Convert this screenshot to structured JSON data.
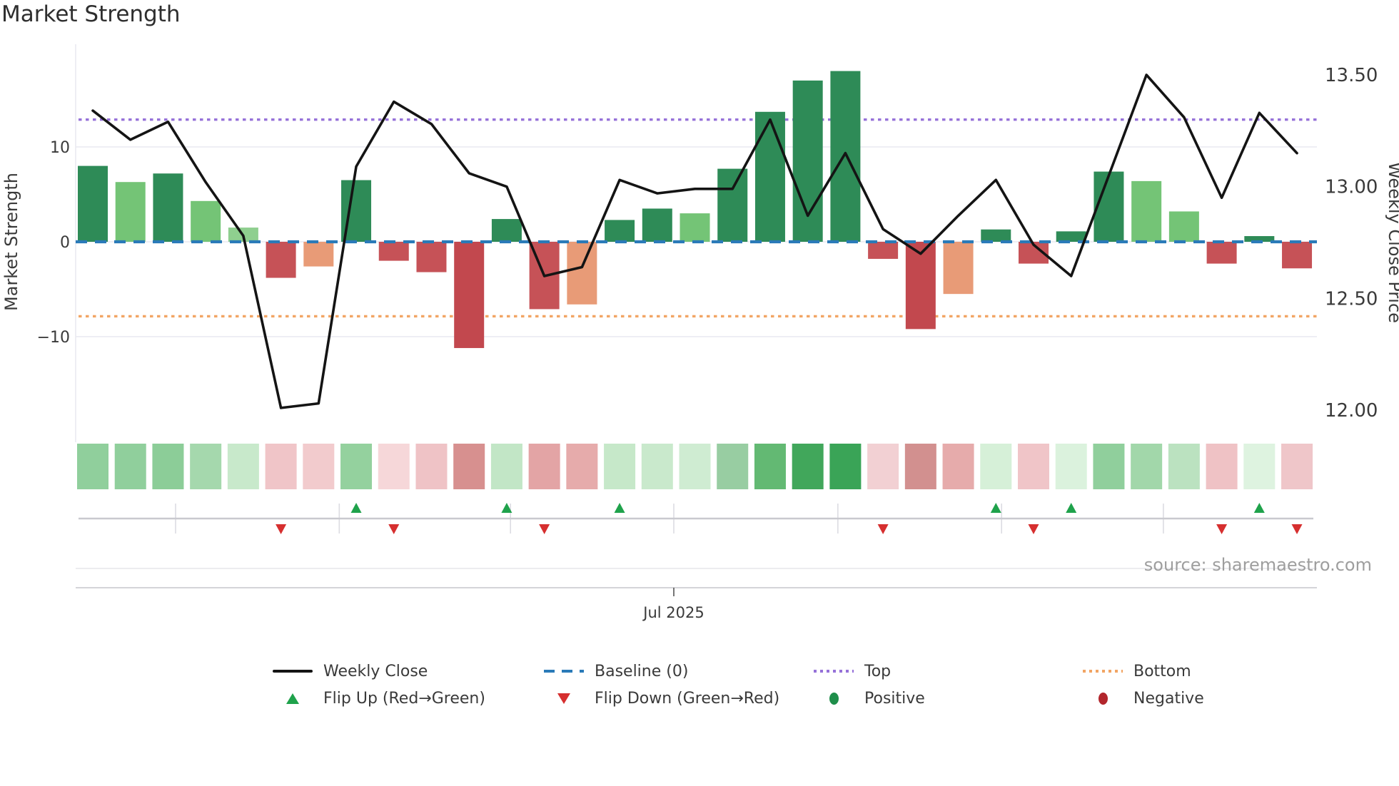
{
  "title": "Market Strength",
  "source_text": "source: sharemaestro.com",
  "axes": {
    "left": {
      "label": "Market Strength",
      "tick_labels": [
        "10",
        "0",
        "−10"
      ],
      "tick_values": [
        10,
        0,
        -10
      ]
    },
    "right": {
      "label": "Weekly Close Price",
      "tick_labels": [
        "13.50",
        "13.00",
        "12.50",
        "12.00"
      ],
      "tick_values": [
        13.5,
        13.0,
        12.5,
        12.0
      ]
    },
    "x": {
      "tick_label": "Jul 2025",
      "tick_week_position": 15.44,
      "month_gridline_week_positions": [
        2.2,
        6.55,
        11.1,
        15.44,
        19.8,
        24.15,
        28.45
      ]
    }
  },
  "chart_data": {
    "type": "bar+line+heatmap",
    "x_unit": "weeks",
    "x_count": 33,
    "series": [
      {
        "name": "Market Strength",
        "type": "bar",
        "axis": "left",
        "values": [
          8.0,
          6.3,
          7.2,
          4.3,
          1.5,
          -3.8,
          -2.6,
          6.5,
          -2.0,
          -3.2,
          -11.2,
          2.4,
          -7.1,
          -6.6,
          2.3,
          3.5,
          3.0,
          7.7,
          13.7,
          17.0,
          18.0,
          -1.8,
          -9.2,
          -5.5,
          1.3,
          -2.3,
          1.1,
          7.4,
          6.4,
          3.2,
          -2.3,
          0.6,
          -2.8
        ],
        "bar_colors": [
          "#2e8b57",
          "#74c476",
          "#2e8b57",
          "#74c476",
          "#8fcf8f",
          "#c65257",
          "#e89b77",
          "#2e8b57",
          "#c65257",
          "#c65257",
          "#c2484e",
          "#2e8b57",
          "#c65257",
          "#e89b77",
          "#2e8b57",
          "#2e8b57",
          "#74c476",
          "#2e8b57",
          "#2e8b57",
          "#2e8b57",
          "#2e8b57",
          "#c65257",
          "#c2484e",
          "#e89b77",
          "#2e8b57",
          "#c65257",
          "#2e8b57",
          "#2e8b57",
          "#74c476",
          "#74c476",
          "#c65257",
          "#2e8b57",
          "#c65257"
        ]
      },
      {
        "name": "Weekly Close",
        "type": "line",
        "axis": "right",
        "values": [
          13.34,
          13.21,
          13.29,
          13.02,
          12.78,
          12.01,
          12.03,
          13.09,
          13.38,
          13.28,
          13.06,
          13.0,
          12.6,
          12.64,
          13.03,
          12.97,
          12.99,
          12.99,
          13.3,
          12.87,
          13.15,
          12.81,
          12.7,
          12.87,
          13.03,
          12.74,
          12.6,
          13.05,
          13.5,
          13.31,
          12.95,
          13.33,
          13.15
        ]
      }
    ],
    "reference_lines": [
      {
        "name": "Baseline (0)",
        "axis": "left",
        "value": 0,
        "style": "dashed",
        "color": "#2a7ab8"
      },
      {
        "name": "Top",
        "axis": "right",
        "value": 13.3,
        "style": "dotted",
        "color": "#9672d9"
      },
      {
        "name": "Bottom",
        "axis": "right",
        "value": 12.42,
        "style": "dotted",
        "color": "#f2a564"
      }
    ],
    "heatmap_strip_colors": [
      "#90cf9c",
      "#90cf9c",
      "#8ccd98",
      "#a5d8ad",
      "#c8e9cb",
      "#f0c5c8",
      "#f2cbcd",
      "#94d19e",
      "#f6d7d9",
      "#efc3c6",
      "#d7908f",
      "#c2e6c6",
      "#e3a4a5",
      "#e6abab",
      "#c6e8c9",
      "#c9e9cc",
      "#cfecd2",
      "#98cda2",
      "#63b973",
      "#41a75b",
      "#3aa457",
      "#f2d0d3",
      "#d2908f",
      "#e6abab",
      "#d6f0d8",
      "#f0c5c8",
      "#dbf2dd",
      "#90cf9c",
      "#a2d7aa",
      "#bbe2c0",
      "#efc2c5",
      "#def3e0",
      "#efc6c9"
    ],
    "flip_up_week_indices": [
      7,
      11,
      14,
      24,
      26,
      31
    ],
    "flip_down_week_indices": [
      5,
      8,
      12,
      21,
      25,
      30,
      32
    ],
    "ylim_left": [
      -21.1,
      20.8
    ],
    "ylim_right": [
      11.86,
      13.64
    ],
    "grid": "horizontal-on"
  },
  "legend": {
    "row1": [
      {
        "label": "Weekly Close",
        "swatch": "line",
        "color": "#141414"
      },
      {
        "label": "Baseline (0)",
        "swatch": "dashed",
        "color": "#2a7ab8"
      },
      {
        "label": "Top",
        "swatch": "dotted",
        "color": "#9672d9"
      },
      {
        "label": "Bottom",
        "swatch": "dotted",
        "color": "#f2a564"
      }
    ],
    "row2": [
      {
        "label": "Flip Up (Red→Green)",
        "swatch": "triangle-up",
        "color": "#1fa24b"
      },
      {
        "label": "Flip Down (Green→Red)",
        "swatch": "triangle-down",
        "color": "#d62f2f"
      },
      {
        "label": "Positive",
        "swatch": "circle",
        "color": "#1e8e4a"
      },
      {
        "label": "Negative",
        "swatch": "circle",
        "color": "#b2262c"
      }
    ]
  },
  "colors": {
    "bar_green_dark": "#2e8b57",
    "bar_green_mid": "#74c476",
    "bar_green_light": "#8fcf8f",
    "bar_red": "#c65257",
    "bar_red_dark": "#c2484e",
    "bar_salmon": "#e89b77",
    "price_line": "#141414",
    "baseline": "#2a7ab8",
    "top_line": "#9672d9",
    "bottom_line": "#f2a564",
    "gridline": "#e9e9f0",
    "tick_text": "#3a3a3a",
    "source_text_color": "#9e9e9e"
  }
}
